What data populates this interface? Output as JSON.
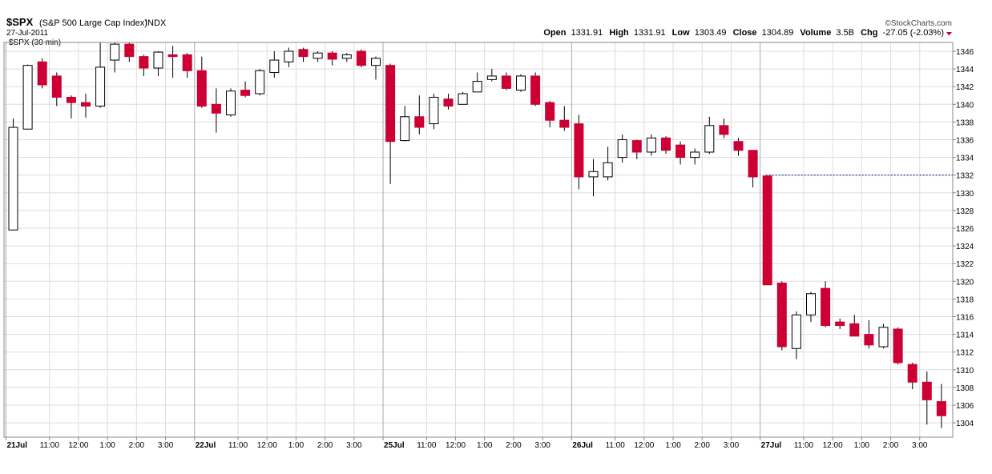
{
  "header": {
    "symbol": "$SPX",
    "name": "(S&P 500 Large Cap Index)",
    "exchange": "INDX",
    "date": "27-Jul-2011",
    "series_label": "$SPX (30 min)",
    "watermark": "©StockCharts.com",
    "ohlc": {
      "open_label": "Open",
      "open": "1331.91",
      "high_label": "High",
      "high": "1331.91",
      "low_label": "Low",
      "low": "1303.49",
      "close_label": "Close",
      "close": "1304.89",
      "volume_label": "Volume",
      "volume": "3.5B",
      "chg_label": "Chg",
      "chg": "-27.05 (-2.03%)"
    }
  },
  "colors": {
    "up_fill": "#ffffff",
    "down_fill": "#cc0033",
    "wick": "#000000",
    "grid": "#dddddd",
    "day_separator": "#aaaaaa",
    "last_price_line": "#000099",
    "chg_arrow": "#cc0033"
  },
  "chart_data": {
    "type": "candlestick",
    "interval": "30 min",
    "ylim": [
      1302,
      1348
    ],
    "y_ticks": [
      1304,
      1306,
      1308,
      1310,
      1312,
      1314,
      1316,
      1318,
      1320,
      1322,
      1324,
      1326,
      1328,
      1330,
      1332,
      1334,
      1336,
      1338,
      1340,
      1342,
      1344,
      1346
    ],
    "y_axis_side": "right",
    "grid": true,
    "last_price_line": 1332,
    "x_labels": [
      {
        "label": "21Jul",
        "index": 0,
        "day": true
      },
      {
        "label": "11:00",
        "index": 3
      },
      {
        "label": "12:00",
        "index": 5
      },
      {
        "label": "1:00",
        "index": 7
      },
      {
        "label": "2:00",
        "index": 9
      },
      {
        "label": "3:00",
        "index": 11
      },
      {
        "label": "22Jul",
        "index": 13,
        "day": true
      },
      {
        "label": "11:00",
        "index": 16
      },
      {
        "label": "12:00",
        "index": 18
      },
      {
        "label": "1:00",
        "index": 20
      },
      {
        "label": "2:00",
        "index": 22
      },
      {
        "label": "3:00",
        "index": 24
      },
      {
        "label": "25Jul",
        "index": 26,
        "day": true
      },
      {
        "label": "11:00",
        "index": 29
      },
      {
        "label": "12:00",
        "index": 31
      },
      {
        "label": "1:00",
        "index": 33
      },
      {
        "label": "2:00",
        "index": 35
      },
      {
        "label": "3:00",
        "index": 37
      },
      {
        "label": "26Jul",
        "index": 39,
        "day": true
      },
      {
        "label": "11:00",
        "index": 42
      },
      {
        "label": "12:00",
        "index": 44
      },
      {
        "label": "1:00",
        "index": 46
      },
      {
        "label": "2:00",
        "index": 48
      },
      {
        "label": "3:00",
        "index": 50
      },
      {
        "label": "27Jul",
        "index": 52,
        "day": true
      },
      {
        "label": "11:00",
        "index": 55
      },
      {
        "label": "12:00",
        "index": 57
      },
      {
        "label": "1:00",
        "index": 59
      },
      {
        "label": "2:00",
        "index": 61
      },
      {
        "label": "3:00",
        "index": 63
      }
    ],
    "candles": [
      {
        "o": 1325.8,
        "h": 1338.4,
        "l": 1325.8,
        "c": 1337.4
      },
      {
        "o": 1337.2,
        "h": 1344.5,
        "l": 1337.2,
        "c": 1344.4
      },
      {
        "o": 1344.8,
        "h": 1345.2,
        "l": 1341.8,
        "c": 1342.2
      },
      {
        "o": 1343.2,
        "h": 1343.6,
        "l": 1339.8,
        "c": 1340.8
      },
      {
        "o": 1340.8,
        "h": 1341.0,
        "l": 1338.4,
        "c": 1340.2
      },
      {
        "o": 1340.2,
        "h": 1341.2,
        "l": 1338.5,
        "c": 1339.8
      },
      {
        "o": 1339.8,
        "h": 1347.0,
        "l": 1339.6,
        "c": 1344.2
      },
      {
        "o": 1345.0,
        "h": 1347.0,
        "l": 1343.6,
        "c": 1346.8
      },
      {
        "o": 1346.8,
        "h": 1347.0,
        "l": 1344.8,
        "c": 1345.4
      },
      {
        "o": 1345.4,
        "h": 1345.6,
        "l": 1343.2,
        "c": 1344.1
      },
      {
        "o": 1344.1,
        "h": 1346.0,
        "l": 1343.2,
        "c": 1345.9
      },
      {
        "o": 1345.6,
        "h": 1346.6,
        "l": 1343.0,
        "c": 1345.4
      },
      {
        "o": 1345.6,
        "h": 1345.8,
        "l": 1343.0,
        "c": 1343.8
      },
      {
        "o": 1343.8,
        "h": 1345.4,
        "l": 1339.6,
        "c": 1339.8
      },
      {
        "o": 1340.0,
        "h": 1341.8,
        "l": 1336.8,
        "c": 1339.0
      },
      {
        "o": 1338.8,
        "h": 1341.8,
        "l": 1338.6,
        "c": 1341.5
      },
      {
        "o": 1341.6,
        "h": 1342.6,
        "l": 1340.8,
        "c": 1341.0
      },
      {
        "o": 1341.2,
        "h": 1344.0,
        "l": 1341.0,
        "c": 1343.8
      },
      {
        "o": 1343.6,
        "h": 1346.0,
        "l": 1343.0,
        "c": 1345.0
      },
      {
        "o": 1344.8,
        "h": 1346.4,
        "l": 1344.2,
        "c": 1346.0
      },
      {
        "o": 1346.2,
        "h": 1346.4,
        "l": 1344.8,
        "c": 1345.4
      },
      {
        "o": 1345.2,
        "h": 1346.0,
        "l": 1344.8,
        "c": 1345.8
      },
      {
        "o": 1345.8,
        "h": 1346.0,
        "l": 1344.4,
        "c": 1345.1
      },
      {
        "o": 1345.2,
        "h": 1345.8,
        "l": 1344.8,
        "c": 1345.6
      },
      {
        "o": 1346.0,
        "h": 1346.2,
        "l": 1344.2,
        "c": 1344.4
      },
      {
        "o": 1344.4,
        "h": 1345.4,
        "l": 1342.8,
        "c": 1345.2
      },
      {
        "o": 1344.4,
        "h": 1344.6,
        "l": 1331.0,
        "c": 1335.8
      },
      {
        "o": 1335.9,
        "h": 1339.8,
        "l": 1335.8,
        "c": 1338.6
      },
      {
        "o": 1338.6,
        "h": 1341.0,
        "l": 1336.6,
        "c": 1337.4
      },
      {
        "o": 1337.8,
        "h": 1341.2,
        "l": 1337.2,
        "c": 1340.8
      },
      {
        "o": 1340.6,
        "h": 1341.2,
        "l": 1339.4,
        "c": 1339.8
      },
      {
        "o": 1340.0,
        "h": 1341.4,
        "l": 1340.0,
        "c": 1341.2
      },
      {
        "o": 1341.4,
        "h": 1343.6,
        "l": 1341.4,
        "c": 1342.6
      },
      {
        "o": 1342.8,
        "h": 1344.0,
        "l": 1342.6,
        "c": 1343.2
      },
      {
        "o": 1343.2,
        "h": 1343.6,
        "l": 1341.6,
        "c": 1341.8
      },
      {
        "o": 1341.6,
        "h": 1343.4,
        "l": 1341.4,
        "c": 1343.2
      },
      {
        "o": 1343.2,
        "h": 1343.6,
        "l": 1339.8,
        "c": 1340.0
      },
      {
        "o": 1340.2,
        "h": 1340.4,
        "l": 1337.4,
        "c": 1338.2
      },
      {
        "o": 1338.2,
        "h": 1339.8,
        "l": 1337.0,
        "c": 1337.4
      },
      {
        "o": 1337.8,
        "h": 1338.8,
        "l": 1330.4,
        "c": 1331.8
      },
      {
        "o": 1331.8,
        "h": 1333.8,
        "l": 1329.6,
        "c": 1332.4
      },
      {
        "o": 1331.8,
        "h": 1335.2,
        "l": 1331.4,
        "c": 1333.4
      },
      {
        "o": 1334.0,
        "h": 1336.6,
        "l": 1333.4,
        "c": 1336.0
      },
      {
        "o": 1335.9,
        "h": 1336.0,
        "l": 1333.8,
        "c": 1334.6
      },
      {
        "o": 1334.6,
        "h": 1336.6,
        "l": 1334.2,
        "c": 1336.2
      },
      {
        "o": 1336.2,
        "h": 1336.4,
        "l": 1334.4,
        "c": 1334.8
      },
      {
        "o": 1335.4,
        "h": 1335.8,
        "l": 1333.2,
        "c": 1334.0
      },
      {
        "o": 1334.0,
        "h": 1335.0,
        "l": 1333.2,
        "c": 1334.6
      },
      {
        "o": 1334.6,
        "h": 1338.6,
        "l": 1334.4,
        "c": 1337.6
      },
      {
        "o": 1337.6,
        "h": 1338.4,
        "l": 1336.2,
        "c": 1336.6
      },
      {
        "o": 1335.8,
        "h": 1336.2,
        "l": 1334.2,
        "c": 1334.8
      },
      {
        "o": 1334.8,
        "h": 1334.8,
        "l": 1330.6,
        "c": 1331.8
      },
      {
        "o": 1331.9,
        "h": 1331.9,
        "l": 1319.6,
        "c": 1319.6
      },
      {
        "o": 1319.8,
        "h": 1320.0,
        "l": 1312.2,
        "c": 1312.6
      },
      {
        "o": 1312.4,
        "h": 1316.6,
        "l": 1311.2,
        "c": 1316.2
      },
      {
        "o": 1316.2,
        "h": 1318.8,
        "l": 1315.4,
        "c": 1318.6
      },
      {
        "o": 1319.2,
        "h": 1320.0,
        "l": 1314.8,
        "c": 1315.0
      },
      {
        "o": 1315.4,
        "h": 1315.8,
        "l": 1314.6,
        "c": 1315.0
      },
      {
        "o": 1315.2,
        "h": 1316.2,
        "l": 1313.8,
        "c": 1313.8
      },
      {
        "o": 1314.0,
        "h": 1315.6,
        "l": 1312.4,
        "c": 1312.8
      },
      {
        "o": 1312.6,
        "h": 1315.2,
        "l": 1312.4,
        "c": 1314.8
      },
      {
        "o": 1314.6,
        "h": 1314.8,
        "l": 1310.6,
        "c": 1310.8
      },
      {
        "o": 1310.6,
        "h": 1310.8,
        "l": 1307.8,
        "c": 1308.6
      },
      {
        "o": 1308.6,
        "h": 1309.8,
        "l": 1303.8,
        "c": 1306.6
      },
      {
        "o": 1306.4,
        "h": 1308.4,
        "l": 1303.4,
        "c": 1304.8
      }
    ]
  }
}
